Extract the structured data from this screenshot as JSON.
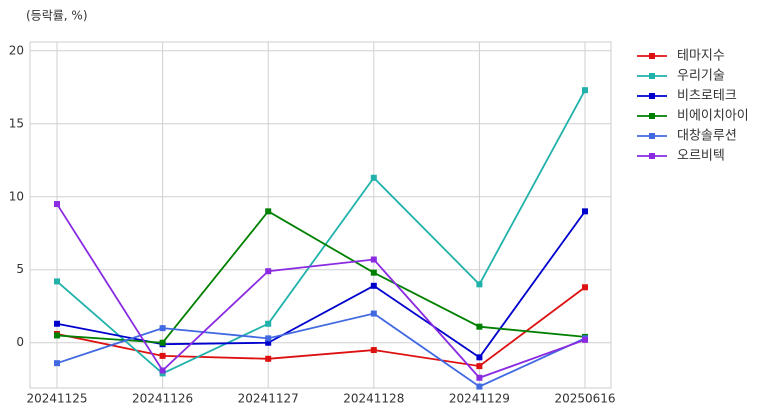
{
  "chart_data": {
    "type": "line",
    "y_label": "(등락률, %)",
    "categories": [
      "20241125",
      "20241126",
      "20241127",
      "20241128",
      "20241129",
      "20250616"
    ],
    "series": [
      {
        "name": "테마지수",
        "color": "#dd1111",
        "values": [
          0.6,
          -0.9,
          -1.1,
          -0.5,
          -1.6,
          3.8
        ]
      },
      {
        "name": "우리기술",
        "color": "#20b2aa",
        "values": [
          4.2,
          -2.1,
          1.3,
          11.3,
          4.0,
          17.3
        ]
      },
      {
        "name": "비츠로테크",
        "color": "#0000cd",
        "values": [
          1.3,
          -0.1,
          0.0,
          3.9,
          -1.0,
          9.0
        ]
      },
      {
        "name": "비에이치아이",
        "color": "#008000",
        "values": [
          0.5,
          0.0,
          9.0,
          4.8,
          1.1,
          0.4
        ]
      },
      {
        "name": "대창솔루션",
        "color": "#4169e1",
        "values": [
          -1.4,
          1.0,
          0.3,
          2.0,
          -3.0,
          0.3
        ]
      },
      {
        "name": "오르비텍",
        "color": "#8a2be2",
        "values": [
          9.5,
          -1.9,
          4.9,
          5.7,
          -2.4,
          0.2
        ]
      }
    ],
    "ylim": [
      -3.1,
      20.6
    ],
    "yticks": [
      0,
      5,
      10,
      15,
      20
    ],
    "grid": true,
    "legend": "outside-right"
  }
}
